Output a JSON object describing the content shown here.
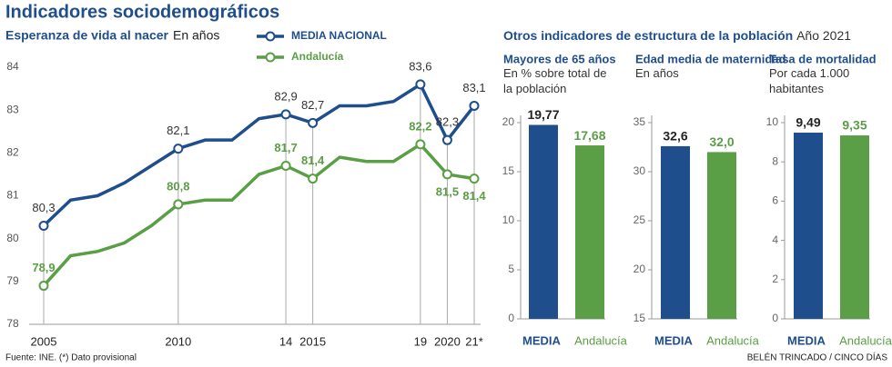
{
  "title": "Indicadores sociodemográficos",
  "section_title": "Otros indicadores de estructura de la población",
  "section_subtitle": "Año 2021",
  "source": "Fuente: INE. (*) Dato provisional",
  "credit": "BELÉN TRINCADO / CINCO DÍAS",
  "chart_data": [
    {
      "type": "line",
      "title": "Esperanza de vida al nacer",
      "subtitle": "En años",
      "x": [
        2005,
        2006,
        2007,
        2008,
        2009,
        2010,
        2011,
        2012,
        2013,
        2014,
        2015,
        2016,
        2017,
        2018,
        2019,
        2020,
        2021
      ],
      "series": [
        {
          "name": "MEDIA NACIONAL",
          "color": "#1f4e8c",
          "values": [
            80.3,
            80.9,
            81.0,
            81.3,
            81.7,
            82.1,
            82.3,
            82.3,
            82.8,
            82.9,
            82.7,
            83.1,
            83.1,
            83.2,
            83.6,
            82.3,
            83.1
          ],
          "value_labels": [
            "80,3",
            null,
            null,
            null,
            null,
            "82,1",
            null,
            null,
            null,
            "82,9",
            "82,7",
            null,
            null,
            null,
            "83,6",
            "82,3",
            "83,1"
          ]
        },
        {
          "name": "Andalucía",
          "color": "#5a9e45",
          "values": [
            78.9,
            79.6,
            79.7,
            79.9,
            80.3,
            80.8,
            80.9,
            80.9,
            81.5,
            81.7,
            81.4,
            81.9,
            81.8,
            81.8,
            82.2,
            81.5,
            81.4
          ],
          "value_labels": [
            "78,9",
            null,
            null,
            null,
            null,
            "80,8",
            null,
            null,
            null,
            "81,7",
            "81,4",
            null,
            null,
            null,
            "82,2",
            "81,5",
            "81,4"
          ]
        }
      ],
      "xlim": [
        2005,
        2021
      ],
      "xticks": [
        2005,
        2010,
        {
          "value": 2014,
          "label": "14"
        },
        2015,
        {
          "value": 2019,
          "label": "19"
        },
        2020,
        {
          "value": 2021,
          "label": "21*"
        }
      ],
      "ylim": [
        78,
        84
      ],
      "yticks": [
        78,
        79,
        80,
        81,
        82,
        83,
        84
      ]
    },
    {
      "type": "bar",
      "title": "Mayores de 65 años",
      "subtitle": "En % sobre total de la población",
      "categories": [
        "MEDIA",
        "Andalucía"
      ],
      "values": [
        19.77,
        17.68
      ],
      "value_labels": [
        "19,77",
        "17,68"
      ],
      "colors": [
        "#1f4e8c",
        "#5a9e45"
      ],
      "ylim": [
        0,
        20
      ],
      "yticks": [
        0,
        5,
        10,
        15,
        20
      ]
    },
    {
      "type": "bar",
      "title": "Edad media de maternidad",
      "subtitle": "En años",
      "categories": [
        "MEDIA",
        "Andalucía"
      ],
      "values": [
        32.6,
        32.0
      ],
      "value_labels": [
        "32,6",
        "32,0"
      ],
      "colors": [
        "#1f4e8c",
        "#5a9e45"
      ],
      "ylim": [
        15,
        35
      ],
      "yticks": [
        15,
        20,
        25,
        30,
        35
      ]
    },
    {
      "type": "bar",
      "title": "Tasa de mortalidad",
      "subtitle": "Por cada 1.000 habitantes",
      "categories": [
        "MEDIA",
        "Andalucía"
      ],
      "values": [
        9.49,
        9.35
      ],
      "value_labels": [
        "9,49",
        "9,35"
      ],
      "colors": [
        "#1f4e8c",
        "#5a9e45"
      ],
      "ylim": [
        0,
        10
      ],
      "yticks": [
        0,
        2,
        4,
        6,
        8,
        10
      ]
    }
  ]
}
